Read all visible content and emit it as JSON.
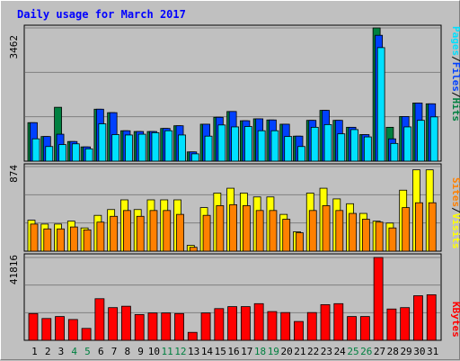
{
  "title": "Daily usage for March 2017",
  "colors": {
    "background": "#c0c0c0",
    "hits": "#008040",
    "files": "#0040ff",
    "pages": "#00e0ff",
    "visits": "#ffff00",
    "sites": "#ff8000",
    "kbytes": "#ff0000",
    "weekday_label": "#000000",
    "weekend_label": "#008040"
  },
  "panel_labels": {
    "top": {
      "pages": "Pages",
      "files": "Files",
      "hits": "Hits",
      "sep": "/"
    },
    "middle": {
      "sites": "Sites",
      "visits": "Visits",
      "sep": "/"
    },
    "bottom": {
      "kbytes": "KBytes"
    }
  },
  "chart_data": {
    "type": "bar",
    "title": "Daily usage for March 2017",
    "categories": [
      "1",
      "2",
      "3",
      "4",
      "5",
      "6",
      "7",
      "8",
      "9",
      "10",
      "11",
      "12",
      "13",
      "14",
      "15",
      "16",
      "17",
      "18",
      "19",
      "20",
      "21",
      "22",
      "23",
      "24",
      "25",
      "26",
      "27",
      "28",
      "29",
      "30",
      "31"
    ],
    "weekend_days": [
      "4",
      "5",
      "11",
      "12",
      "18",
      "19",
      "25",
      "26"
    ],
    "panels": [
      {
        "name": "hits-files-pages",
        "max_label": "3462",
        "ylim": [
          0,
          3462
        ],
        "series": [
          {
            "name": "Hits",
            "values": [
              1000,
              640,
              1400,
              510,
              370,
              1350,
              1260,
              790,
              770,
              770,
              850,
              920,
              240,
              960,
              1140,
              1290,
              1050,
              1100,
              1070,
              960,
              650,
              1060,
              1320,
              1060,
              880,
              690,
              3462,
              880,
              1160,
              1510,
              1490
            ]
          },
          {
            "name": "Files",
            "values": [
              1000,
              640,
              700,
              510,
              370,
              1350,
              1260,
              790,
              770,
              770,
              850,
              920,
              240,
              960,
              1140,
              1290,
              1050,
              1100,
              1070,
              960,
              650,
              1060,
              1320,
              1060,
              880,
              690,
              3270,
              580,
              1160,
              1510,
              1490
            ]
          },
          {
            "name": "Pages",
            "values": [
              580,
              380,
              430,
              450,
              320,
              970,
              690,
              680,
              700,
              740,
              790,
              680,
              190,
              650,
              940,
              890,
              900,
              790,
              790,
              640,
              380,
              880,
              950,
              710,
              820,
              630,
              2950,
              460,
              890,
              1060,
              1150
            ]
          }
        ]
      },
      {
        "name": "visits-sites",
        "max_label": "874",
        "ylim": [
          0,
          874
        ],
        "series": [
          {
            "name": "Visits",
            "values": [
              320,
              280,
              280,
              310,
              240,
              370,
              430,
              530,
              430,
              530,
              530,
              530,
              60,
              450,
              600,
              650,
              600,
              560,
              560,
              380,
              200,
              600,
              650,
              540,
              490,
              390,
              310,
              290,
              630,
              840,
              840
            ]
          },
          {
            "name": "Sites",
            "values": [
              280,
              230,
              230,
              250,
              220,
              300,
              360,
              420,
              360,
              420,
              420,
              380,
              40,
              370,
              470,
              480,
              470,
              420,
              420,
              330,
              190,
              420,
              470,
              420,
              390,
              330,
              300,
              240,
              450,
              500,
              500
            ]
          }
        ]
      },
      {
        "name": "kbytes",
        "max_label": "41816",
        "ylim": [
          0,
          41816
        ],
        "series": [
          {
            "name": "KBytes",
            "values": [
              13500,
              11000,
              12000,
              10500,
              6000,
              21000,
              16500,
              17200,
              13000,
              13800,
              13800,
              13500,
              4000,
              13800,
              16000,
              17000,
              17000,
              18500,
              14500,
              14000,
              9500,
              14000,
              18000,
              18500,
              12000,
              12000,
              41816,
              15800,
              16500,
              22500,
              23000
            ]
          }
        ]
      }
    ]
  }
}
